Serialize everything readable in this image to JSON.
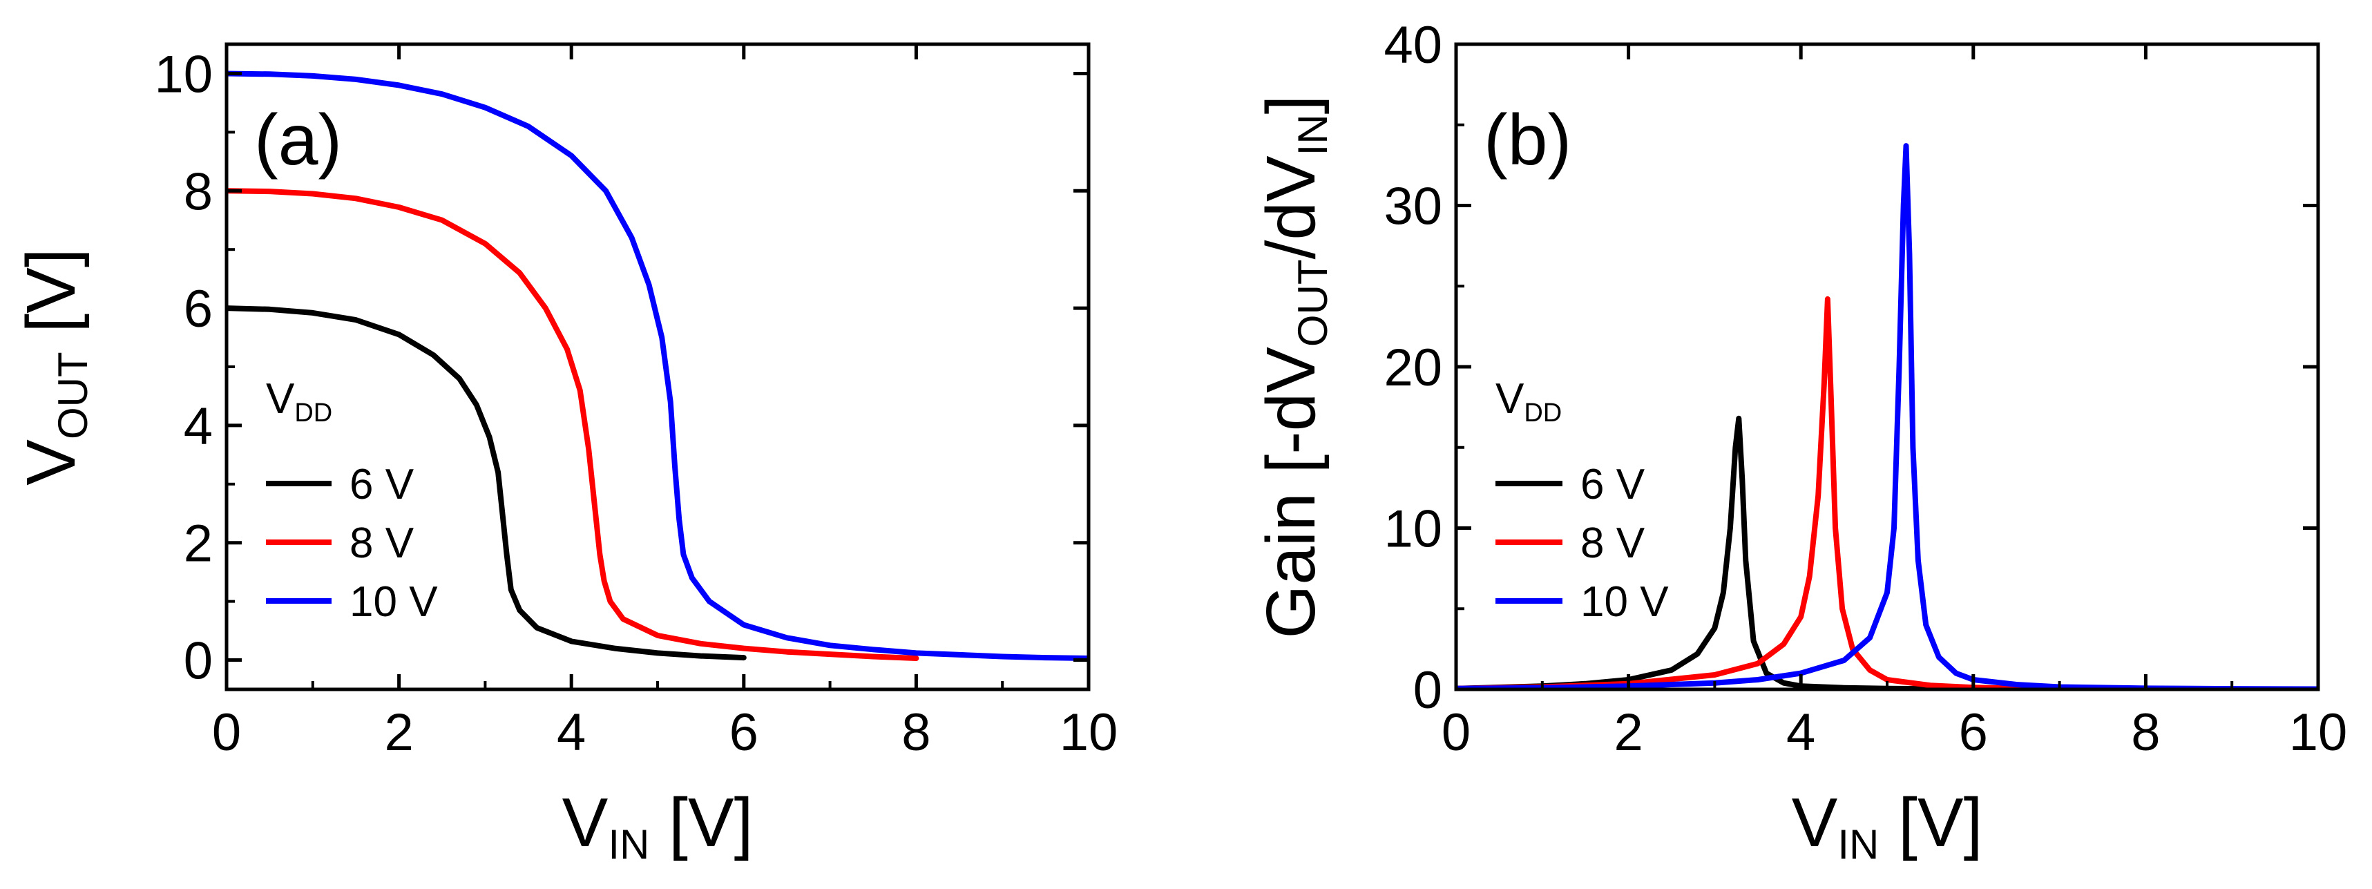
{
  "chart_data": [
    {
      "type": "line",
      "panel_label": "(a)",
      "xlabel": {
        "main": "V",
        "sub": "IN",
        "unit": " [V]"
      },
      "ylabel": {
        "main": "V",
        "sub": "OUT",
        "unit": " [V]"
      },
      "xlim": [
        0,
        10
      ],
      "ylim": [
        -0.5,
        10.5
      ],
      "xticks": [
        0,
        2,
        4,
        6,
        8,
        10
      ],
      "yticks": [
        0,
        2,
        4,
        6,
        8,
        10
      ],
      "xtick_labels": [
        "0",
        "2",
        "4",
        "6",
        "8",
        "10"
      ],
      "ytick_labels": [
        "0",
        "2",
        "4",
        "6",
        "8",
        "10"
      ],
      "legend": {
        "title_main": "V",
        "title_sub": "DD",
        "placement": "lower-left"
      },
      "series": [
        {
          "name": "6 V",
          "color": "#000000",
          "x": [
            0,
            0.5,
            1.0,
            1.5,
            2.0,
            2.4,
            2.7,
            2.9,
            3.05,
            3.15,
            3.2,
            3.25,
            3.3,
            3.4,
            3.6,
            4.0,
            4.5,
            5.0,
            5.5,
            6.0
          ],
          "y": [
            6.0,
            5.98,
            5.92,
            5.8,
            5.55,
            5.2,
            4.8,
            4.35,
            3.8,
            3.2,
            2.5,
            1.8,
            1.2,
            0.85,
            0.55,
            0.32,
            0.2,
            0.12,
            0.07,
            0.04
          ]
        },
        {
          "name": "8 V",
          "color": "#ff0000",
          "x": [
            0,
            0.5,
            1.0,
            1.5,
            2.0,
            2.5,
            3.0,
            3.4,
            3.7,
            3.95,
            4.1,
            4.2,
            4.28,
            4.33,
            4.38,
            4.45,
            4.6,
            5.0,
            5.5,
            6.0,
            6.5,
            7.0,
            7.5,
            8.0
          ],
          "y": [
            8.0,
            7.99,
            7.95,
            7.87,
            7.72,
            7.5,
            7.1,
            6.6,
            6.0,
            5.3,
            4.6,
            3.6,
            2.5,
            1.8,
            1.35,
            1.0,
            0.7,
            0.42,
            0.28,
            0.2,
            0.14,
            0.1,
            0.06,
            0.03
          ]
        },
        {
          "name": "10 V",
          "color": "#0000ff",
          "x": [
            0,
            0.5,
            1.0,
            1.5,
            2.0,
            2.5,
            3.0,
            3.5,
            4.0,
            4.4,
            4.7,
            4.9,
            5.05,
            5.15,
            5.2,
            5.25,
            5.3,
            5.4,
            5.6,
            6.0,
            6.5,
            7.0,
            7.5,
            8.0,
            8.5,
            9.0,
            9.5,
            10.0
          ],
          "y": [
            10.0,
            9.99,
            9.96,
            9.9,
            9.8,
            9.65,
            9.42,
            9.1,
            8.6,
            8.0,
            7.2,
            6.4,
            5.5,
            4.4,
            3.3,
            2.4,
            1.8,
            1.4,
            1.0,
            0.6,
            0.38,
            0.25,
            0.18,
            0.12,
            0.09,
            0.06,
            0.04,
            0.03
          ]
        }
      ]
    },
    {
      "type": "line",
      "panel_label": "(b)",
      "xlabel": {
        "main": "V",
        "sub": "IN",
        "unit": " [V]"
      },
      "ylabel": {
        "prefix": "Gain [-dV",
        "sub1": "OUT",
        "mid": "/dV",
        "sub2": "IN",
        "suffix": "]"
      },
      "xlim": [
        0,
        10
      ],
      "ylim": [
        0,
        40
      ],
      "xticks": [
        0,
        2,
        4,
        6,
        8,
        10
      ],
      "yticks": [
        0,
        10,
        20,
        30,
        40
      ],
      "xtick_labels": [
        "0",
        "2",
        "4",
        "6",
        "8",
        "10"
      ],
      "ytick_labels": [
        "0",
        "10",
        "20",
        "30",
        "40"
      ],
      "legend": {
        "title_main": "V",
        "title_sub": "DD",
        "placement": "middle-left"
      },
      "series": [
        {
          "name": "6 V",
          "color": "#000000",
          "x": [
            0,
            1.0,
            1.5,
            2.0,
            2.5,
            2.8,
            3.0,
            3.1,
            3.18,
            3.24,
            3.28,
            3.32,
            3.36,
            3.45,
            3.6,
            3.8,
            4.0,
            4.5,
            5.0,
            5.5,
            6.0
          ],
          "y": [
            0.05,
            0.2,
            0.35,
            0.6,
            1.2,
            2.2,
            3.8,
            6.0,
            10.0,
            15.0,
            16.8,
            13.0,
            8.0,
            3.0,
            1.0,
            0.4,
            0.2,
            0.1,
            0.05,
            0.03,
            0.02
          ]
        },
        {
          "name": "8 V",
          "color": "#ff0000",
          "x": [
            0,
            1.0,
            2.0,
            3.0,
            3.5,
            3.8,
            4.0,
            4.1,
            4.2,
            4.27,
            4.31,
            4.35,
            4.4,
            4.48,
            4.6,
            4.8,
            5.0,
            5.5,
            6.0,
            6.5,
            7.0,
            8.0
          ],
          "y": [
            0.05,
            0.15,
            0.35,
            0.9,
            1.6,
            2.8,
            4.5,
            7.0,
            12.0,
            19.0,
            24.2,
            18.0,
            10.0,
            5.0,
            2.5,
            1.2,
            0.6,
            0.25,
            0.12,
            0.06,
            0.03,
            0.02
          ]
        },
        {
          "name": "10 V",
          "color": "#0000ff",
          "x": [
            0,
            1.0,
            2.0,
            3.0,
            3.5,
            4.0,
            4.5,
            4.8,
            5.0,
            5.08,
            5.14,
            5.19,
            5.22,
            5.26,
            5.3,
            5.36,
            5.45,
            5.6,
            5.8,
            6.0,
            6.5,
            7.0,
            8.0,
            9.0,
            10.0
          ],
          "y": [
            0.05,
            0.1,
            0.2,
            0.4,
            0.6,
            1.0,
            1.8,
            3.2,
            6.0,
            10.0,
            20.0,
            30.0,
            33.7,
            27.0,
            15.0,
            8.0,
            4.0,
            2.0,
            1.0,
            0.6,
            0.3,
            0.15,
            0.07,
            0.04,
            0.02
          ]
        }
      ]
    }
  ]
}
